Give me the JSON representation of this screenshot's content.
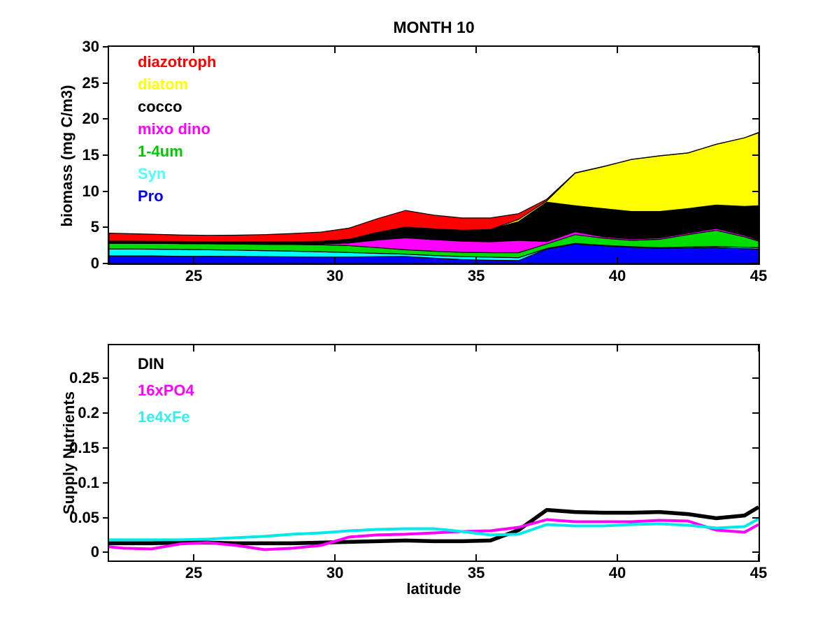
{
  "figure": {
    "background": "#ffffff",
    "axis_color": "#000000"
  },
  "chart_data": [
    {
      "type": "area",
      "title": "MONTH 10",
      "ylabel": "biomass (mg C/m3)",
      "xlim": [
        22,
        45
      ],
      "ylim": [
        0,
        30
      ],
      "grid": false,
      "legend_position": "inside-top-left",
      "xticks": {
        "values": [
          25,
          30,
          35,
          40,
          45
        ],
        "labels": [
          "25",
          "30",
          "35",
          "40",
          "45"
        ]
      },
      "yticks": {
        "values": [
          0,
          5,
          10,
          15,
          20,
          25,
          30
        ],
        "labels": [
          "0",
          "5",
          "10",
          "15",
          "20",
          "25",
          "30"
        ]
      },
      "x": [
        22,
        22.5,
        23.5,
        24.5,
        25.5,
        26.5,
        27.5,
        28.5,
        29.5,
        30.5,
        31.5,
        32.5,
        33.5,
        34.5,
        35.5,
        36.5,
        37.5,
        38.5,
        39.5,
        40.5,
        41.5,
        42.5,
        43.5,
        44.5,
        45
      ],
      "stack_order": "bottom_to_top",
      "series": [
        {
          "name": "Pro",
          "color": "#0000FF",
          "values": [
            1.05,
            1.05,
            1.05,
            1.0,
            1.0,
            0.98,
            0.95,
            0.92,
            0.9,
            0.9,
            0.95,
            0.97,
            0.75,
            0.55,
            0.45,
            0.4,
            2.0,
            2.7,
            2.45,
            2.25,
            2.1,
            2.15,
            2.2,
            2.05,
            2.0
          ]
        },
        {
          "name": "Syn",
          "color": "#00FFFF",
          "values": [
            0.95,
            0.95,
            0.93,
            0.95,
            0.9,
            0.87,
            0.83,
            0.78,
            0.72,
            0.62,
            0.45,
            0.33,
            0.35,
            0.4,
            0.43,
            0.4,
            0.08,
            0.08,
            0.07,
            0.07,
            0.1,
            0.13,
            0.15,
            0.2,
            0.2
          ]
        },
        {
          "name": "1-4um",
          "color": "#00DB00",
          "values": [
            0.8,
            0.8,
            0.8,
            0.8,
            0.82,
            0.83,
            0.87,
            0.92,
            0.96,
            0.96,
            0.8,
            0.6,
            0.6,
            0.6,
            0.62,
            0.7,
            0.62,
            1.22,
            0.98,
            0.88,
            1.15,
            1.72,
            2.25,
            1.45,
            0.9
          ]
        },
        {
          "name": "mixo dino",
          "color": "#FF00FF",
          "values": [
            0.02,
            0.02,
            0.02,
            0.02,
            0.02,
            0.02,
            0.03,
            0.05,
            0.12,
            0.37,
            1.05,
            1.65,
            1.6,
            1.55,
            1.5,
            1.7,
            0.35,
            0.4,
            0.2,
            0.2,
            0.2,
            0.2,
            0.25,
            0.2,
            0.15
          ]
        },
        {
          "name": "cocco",
          "color": "#000000",
          "values": [
            0.28,
            0.28,
            0.28,
            0.28,
            0.28,
            0.3,
            0.32,
            0.35,
            0.38,
            0.5,
            1.05,
            1.5,
            1.5,
            1.5,
            1.7,
            2.6,
            5.45,
            3.6,
            3.9,
            3.8,
            3.65,
            3.4,
            3.25,
            4.0,
            4.75
          ]
        },
        {
          "name": "diatom",
          "color": "#FFFF00",
          "values": [
            0.0,
            0.0,
            0.0,
            0.0,
            0.0,
            0.0,
            0.0,
            0.0,
            0.0,
            0.0,
            0.0,
            0.0,
            0.0,
            0.0,
            0.0,
            0.3,
            0.18,
            4.5,
            5.8,
            7.2,
            7.7,
            7.7,
            8.4,
            9.5,
            10.1
          ]
        },
        {
          "name": "diazotroph",
          "color": "#FF0000",
          "values": [
            1.1,
            1.05,
            0.97,
            0.9,
            0.88,
            0.92,
            1.0,
            1.13,
            1.27,
            1.55,
            1.9,
            2.3,
            1.9,
            1.7,
            1.6,
            0.8,
            0.22,
            0.05,
            0.03,
            0.02,
            0.02,
            0.02,
            0.02,
            0.0,
            0.05
          ]
        }
      ],
      "legend": [
        {
          "label": "diazotroph",
          "color": "#FF0000"
        },
        {
          "label": "diatom",
          "color": "#FFFF00"
        },
        {
          "label": "cocco",
          "color": "#000000"
        },
        {
          "label": "mixo dino",
          "color": "#FF00FF"
        },
        {
          "label": "1-4um",
          "color": "#00C800"
        },
        {
          "label": "Syn",
          "color": "#4DFFFF"
        },
        {
          "label": "Pro",
          "color": "#0000EE"
        }
      ]
    },
    {
      "type": "line",
      "title": "",
      "ylabel": "Supply Nutrients",
      "xlabel": "latitude",
      "xlim": [
        22,
        45
      ],
      "ylim": [
        -0.012,
        0.297
      ],
      "grid": false,
      "legend_position": "inside-top-left",
      "xticks": {
        "values": [
          25,
          30,
          35,
          40,
          45
        ],
        "labels": [
          "25",
          "30",
          "35",
          "40",
          "45"
        ]
      },
      "yticks": {
        "values": [
          0,
          0.05,
          0.1,
          0.15,
          0.2,
          0.25
        ],
        "labels": [
          "0",
          "0.05",
          "0.1",
          "0.15",
          "0.2",
          "0.25"
        ]
      },
      "x": [
        22,
        22.5,
        23.5,
        24.5,
        25.5,
        26.5,
        27.5,
        28.5,
        29.5,
        30.5,
        31.5,
        32.5,
        33.5,
        34.5,
        35.5,
        36.5,
        37.5,
        38.5,
        39.5,
        40.5,
        41.5,
        42.5,
        43.5,
        44.5,
        45
      ],
      "series": [
        {
          "name": "DIN",
          "color": "#000000",
          "values": [
            0.013,
            0.013,
            0.013,
            0.014,
            0.014,
            0.013,
            0.013,
            0.013,
            0.014,
            0.015,
            0.016,
            0.017,
            0.016,
            0.016,
            0.017,
            0.032,
            0.061,
            0.058,
            0.057,
            0.057,
            0.058,
            0.055,
            0.049,
            0.053,
            0.065
          ]
        },
        {
          "name": "16xPO4",
          "color": "#FF00FF",
          "values": [
            0.008,
            0.006,
            0.005,
            0.012,
            0.014,
            0.01,
            0.004,
            0.006,
            0.01,
            0.022,
            0.025,
            0.026,
            0.028,
            0.03,
            0.031,
            0.036,
            0.047,
            0.044,
            0.044,
            0.044,
            0.046,
            0.045,
            0.032,
            0.029,
            0.04
          ]
        },
        {
          "name": "1e4xFe",
          "color": "#00E9E9",
          "values": [
            0.018,
            0.018,
            0.018,
            0.018,
            0.019,
            0.021,
            0.023,
            0.026,
            0.028,
            0.031,
            0.033,
            0.034,
            0.034,
            0.03,
            0.025,
            0.026,
            0.04,
            0.038,
            0.038,
            0.04,
            0.041,
            0.039,
            0.035,
            0.037,
            0.048
          ]
        }
      ],
      "legend": [
        {
          "label": "DIN",
          "color": "#000000"
        },
        {
          "label": "16xPO4",
          "color": "#FF00FF"
        },
        {
          "label": "1e4xFe",
          "color": "#33EEEE"
        }
      ]
    }
  ]
}
